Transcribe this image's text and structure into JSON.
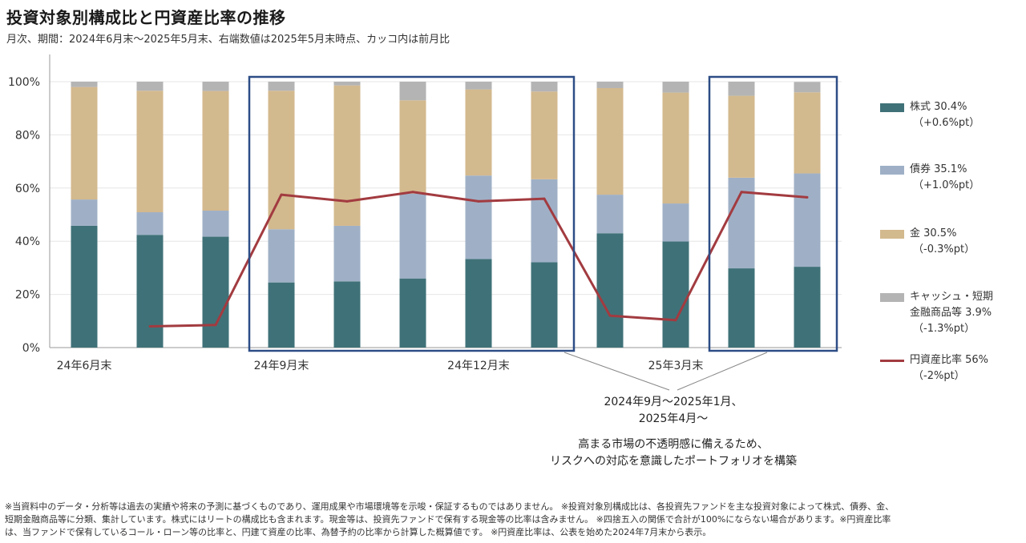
{
  "title": "投資対象別構成比と円資産比率の推移",
  "subtitle": "月次、期間：2024年6月末～2025年5月末、右端数値は2025年5月末時点、カッコ内は前月比",
  "legend": {
    "stocks": {
      "label": "株式 30.4%",
      "change": "（+0.6%pt）"
    },
    "bonds": {
      "label": "債券 35.1%",
      "change": "（+1.0%pt）"
    },
    "gold": {
      "label": "金 30.5%",
      "change": "（-0.3%pt）"
    },
    "cash": {
      "label1": "キャッシュ・短期",
      "label2": "金融商品等 3.9%",
      "change": "（-1.3%pt）"
    },
    "yen": {
      "label": "円資産比率 56%",
      "change": "（-2%pt）"
    }
  },
  "annotation": {
    "line1": "2024年9月～2025年1月、",
    "line2": "2025年4月～",
    "line3": "高まる市場の不透明感に備えるため、",
    "line4": "リスクへの対応を意識したポートフォリオを構築"
  },
  "footer": {
    "line1": "※当資料中のデータ・分析等は過去の実績や将来の予測に基づくものであり、運用成果や市場環境等を示唆・保証するものではありません。 ※投資対象別構成比は、各投資先ファンドを主な投資対象によって株式、債券、金、",
    "line2": "短期金融商品等に分類、集計しています。株式にはリートの構成比も含まれます。現金等は、投資先ファンドで保有する現金等の比率は含みません。 ※四捨五入の関係で合計が100%にならない場合があります。※円資産比率",
    "line3": "は、当ファンドで保有しているコール・ローン等の比率と、円建て資産の比率、為替予約の比率から計算した概算値です。 ※円資産比率は、公表を始めた2024年7月末から表示。"
  },
  "colors": {
    "stocks": "#3f7278",
    "bonds": "#9fb0c6",
    "gold": "#d3b98e",
    "cash": "#b4b4b4",
    "yen": "#a23b40",
    "highlight": "#2d4d86"
  },
  "chart_data": {
    "type": "bar",
    "stacked": true,
    "categories": [
      "2024-06",
      "2024-07",
      "2024-08",
      "2024-09",
      "2024-10",
      "2024-11",
      "2024-12",
      "2025-01",
      "2025-02",
      "2025-03",
      "2025-04",
      "2025-05"
    ],
    "tick_labels": [
      {
        "index": 0,
        "label": "24年6月末"
      },
      {
        "index": 3,
        "label": "24年9月末"
      },
      {
        "index": 6,
        "label": "24年12月末"
      },
      {
        "index": 9,
        "label": "25年3月末"
      }
    ],
    "series": [
      {
        "name": "株式",
        "values": [
          45.8,
          42.4,
          41.7,
          24.5,
          24.9,
          26.0,
          33.3,
          32.1,
          43.0,
          39.9,
          29.8,
          30.4
        ]
      },
      {
        "name": "債券",
        "values": [
          9.9,
          8.5,
          9.8,
          20.0,
          20.9,
          31.9,
          31.4,
          31.2,
          14.5,
          14.3,
          34.1,
          35.1
        ]
      },
      {
        "name": "金",
        "values": [
          42.3,
          45.7,
          45.0,
          52.1,
          52.8,
          35.1,
          32.4,
          33.0,
          40.1,
          41.7,
          30.8,
          30.5
        ]
      },
      {
        "name": "キャッシュ・短期金融商品等",
        "values": [
          2.0,
          3.4,
          3.5,
          3.4,
          1.4,
          7.0,
          2.9,
          3.7,
          2.4,
          4.1,
          5.3,
          3.9
        ]
      }
    ],
    "line_series": {
      "name": "円資産比率",
      "start_index": 1,
      "values": [
        8,
        8.5,
        57.5,
        55,
        58.5,
        55,
        56,
        12,
        10.3,
        58.5,
        56.5
      ]
    },
    "y_ticks": [
      "0%",
      "20%",
      "40%",
      "60%",
      "80%",
      "100%"
    ],
    "ylim": [
      0,
      100
    ],
    "highlight_ranges": [
      [
        3,
        7
      ],
      [
        10,
        11
      ]
    ],
    "grid": true,
    "legend_position": "right"
  }
}
